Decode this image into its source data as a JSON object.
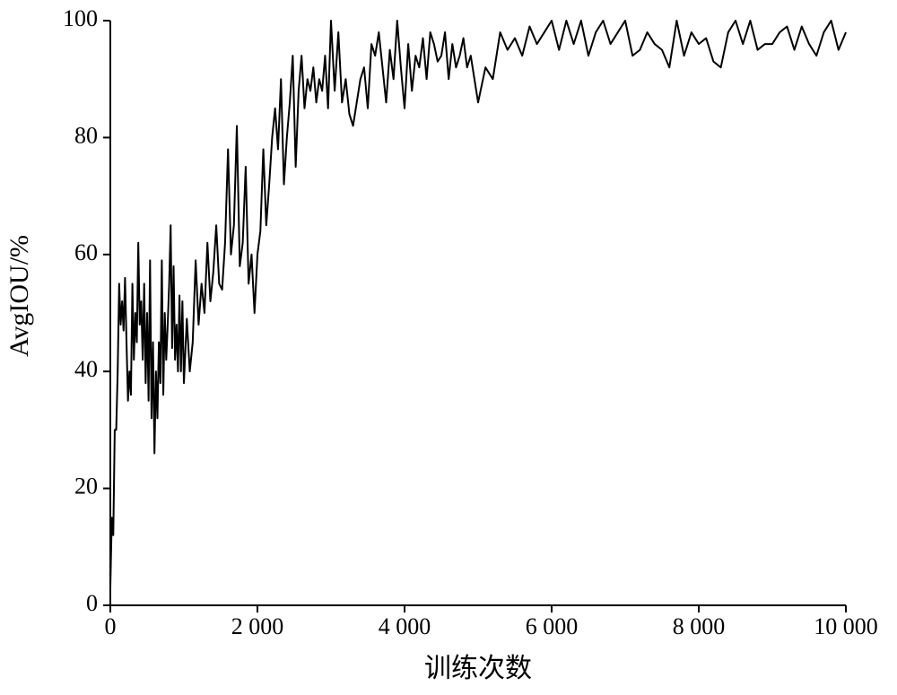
{
  "chart_data": {
    "type": "line",
    "xlabel": "训练次数",
    "ylabel": "AvgIOU/%",
    "x": [
      0,
      20,
      40,
      60,
      80,
      100,
      120,
      140,
      160,
      180,
      200,
      220,
      240,
      260,
      280,
      300,
      320,
      340,
      360,
      380,
      400,
      420,
      440,
      460,
      480,
      500,
      520,
      540,
      560,
      580,
      600,
      620,
      640,
      660,
      680,
      700,
      720,
      740,
      760,
      780,
      800,
      820,
      840,
      860,
      880,
      900,
      920,
      940,
      960,
      980,
      1000,
      1040,
      1080,
      1120,
      1160,
      1200,
      1240,
      1280,
      1320,
      1360,
      1400,
      1440,
      1480,
      1520,
      1560,
      1600,
      1640,
      1680,
      1720,
      1760,
      1800,
      1840,
      1880,
      1920,
      1960,
      2000,
      2040,
      2080,
      2120,
      2160,
      2200,
      2240,
      2280,
      2320,
      2360,
      2400,
      2440,
      2480,
      2520,
      2560,
      2600,
      2640,
      2680,
      2720,
      2760,
      2800,
      2840,
      2880,
      2920,
      2960,
      3000,
      3050,
      3100,
      3150,
      3200,
      3250,
      3300,
      3350,
      3400,
      3450,
      3500,
      3550,
      3600,
      3650,
      3700,
      3750,
      3800,
      3850,
      3900,
      3950,
      4000,
      4050,
      4100,
      4150,
      4200,
      4250,
      4300,
      4350,
      4400,
      4450,
      4500,
      4550,
      4600,
      4650,
      4700,
      4750,
      4800,
      4850,
      4900,
      4950,
      5000,
      5100,
      5200,
      5300,
      5400,
      5500,
      5600,
      5700,
      5800,
      5900,
      6000,
      6100,
      6200,
      6300,
      6400,
      6500,
      6600,
      6700,
      6800,
      6900,
      7000,
      7100,
      7200,
      7300,
      7400,
      7500,
      7600,
      7700,
      7800,
      7900,
      8000,
      8100,
      8200,
      8300,
      8400,
      8500,
      8600,
      8700,
      8800,
      8900,
      9000,
      9100,
      9200,
      9300,
      9400,
      9500,
      9600,
      9700,
      9800,
      9900,
      10000
    ],
    "series": [
      {
        "color": "#000000",
        "values": [
          3,
          15,
          12,
          30,
          30,
          40,
          55,
          48,
          52,
          47,
          56,
          45,
          35,
          40,
          36,
          55,
          42,
          50,
          45,
          62,
          48,
          52,
          42,
          55,
          38,
          50,
          35,
          59,
          32,
          45,
          26,
          40,
          32,
          45,
          38,
          59,
          36,
          50,
          42,
          48,
          55,
          65,
          44,
          58,
          42,
          48,
          40,
          53,
          40,
          52,
          38,
          49,
          40,
          45,
          59,
          48,
          55,
          50,
          62,
          52,
          57,
          65,
          55,
          54,
          62,
          78,
          60,
          65,
          82,
          58,
          62,
          75,
          55,
          60,
          50,
          60,
          64,
          78,
          65,
          72,
          80,
          85,
          78,
          90,
          72,
          80,
          86,
          94,
          75,
          88,
          94,
          85,
          90,
          88,
          92,
          86,
          90,
          88,
          94,
          85,
          100,
          88,
          98,
          86,
          90,
          84,
          82,
          86,
          90,
          92,
          85,
          96,
          94,
          98,
          92,
          86,
          95,
          90,
          100,
          92,
          85,
          96,
          88,
          94,
          92,
          97,
          90,
          98,
          96,
          93,
          94,
          98,
          90,
          96,
          92,
          94,
          97,
          92,
          94,
          90,
          86,
          92,
          90,
          98,
          95,
          97,
          94,
          99,
          96,
          98,
          100,
          95,
          100,
          96,
          100,
          94,
          98,
          100,
          96,
          98,
          100,
          94,
          95,
          98,
          96,
          95,
          92,
          100,
          94,
          98,
          96,
          97,
          93,
          92,
          98,
          100,
          96,
          100,
          95,
          96,
          96,
          98,
          99,
          95,
          99,
          96,
          94,
          98,
          100,
          95,
          98
        ]
      }
    ],
    "xlim": [
      0,
      10000
    ],
    "xticks": [
      0,
      {
        "value": 2000,
        "label": "2 000"
      },
      {
        "value": 4000,
        "label": "4 000"
      },
      {
        "value": 6000,
        "label": "6 000"
      },
      {
        "value": 8000,
        "label": "8 000"
      },
      {
        "value": 10000,
        "label": "10 000"
      }
    ],
    "ylim": [
      0,
      100
    ],
    "yticks": [
      0,
      20,
      40,
      60,
      80,
      100
    ]
  }
}
